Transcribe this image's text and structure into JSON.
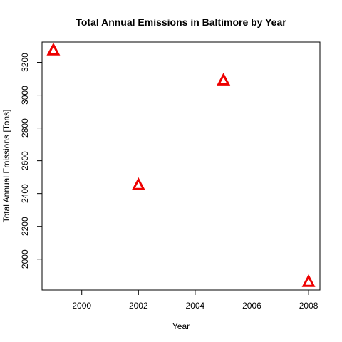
{
  "chart_data": {
    "type": "scatter",
    "title": "Total Annual Emissions in Baltimore by Year",
    "xlabel": "Year",
    "ylabel": "Total Annual Emissions [Tons]",
    "x": [
      1999,
      2002,
      2005,
      2008
    ],
    "y": [
      3274,
      2453,
      3091,
      1862
    ],
    "xlim": [
      1998.6,
      2008.4
    ],
    "ylim": [
      1812,
      3324
    ],
    "xticks": [
      2000,
      2002,
      2004,
      2006,
      2008
    ],
    "yticks": [
      2000,
      2200,
      2400,
      2600,
      2800,
      3000,
      3200
    ],
    "marker": "open-triangle",
    "marker_color": "#ee0000",
    "grid": false
  }
}
